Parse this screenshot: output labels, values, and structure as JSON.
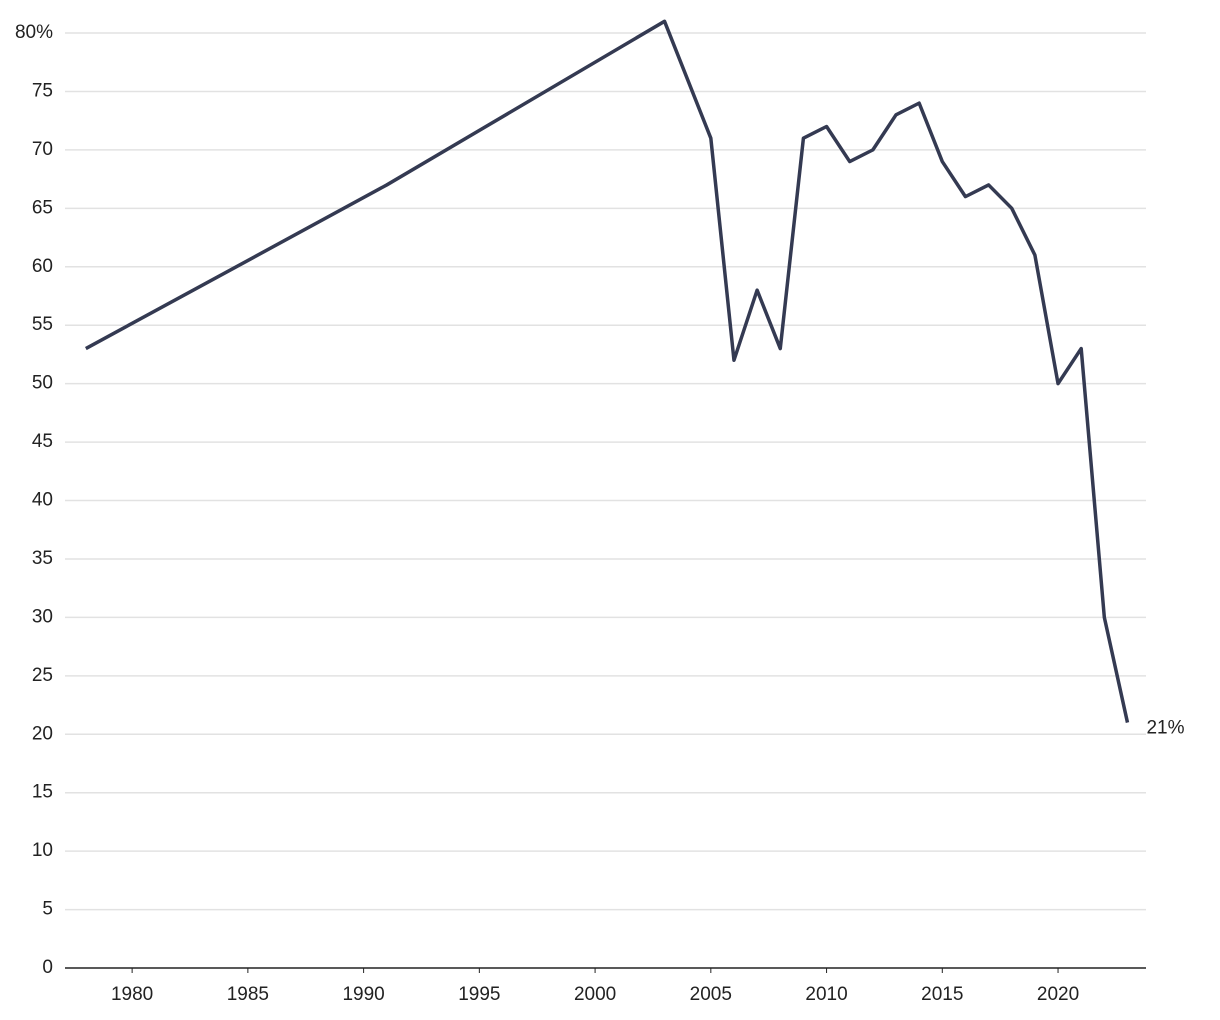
{
  "chart_data": {
    "type": "line",
    "x": [
      1978,
      1991,
      2003,
      2005,
      2006,
      2007,
      2008,
      2009,
      2010,
      2011,
      2012,
      2013,
      2014,
      2015,
      2016,
      2017,
      2018,
      2019,
      2020,
      2021,
      2022,
      2023
    ],
    "series": [
      {
        "color": "#343a52",
        "values": [
          53,
          67,
          81,
          71,
          52,
          58,
          53,
          71,
          72,
          69,
          70,
          73,
          74,
          69,
          66,
          67,
          65,
          61,
          50,
          53,
          30,
          21
        ],
        "value_labels": [
          null,
          null,
          null,
          null,
          null,
          null,
          null,
          null,
          null,
          null,
          null,
          null,
          null,
          null,
          null,
          null,
          null,
          null,
          null,
          null,
          null,
          "21%"
        ]
      }
    ],
    "xlim": [
      1977.1,
      2023.8
    ],
    "xticks": [
      1980,
      1985,
      1990,
      1995,
      2000,
      2005,
      2010,
      2015,
      2020
    ],
    "ylim": [
      0,
      80
    ],
    "yticks": [
      0,
      5,
      10,
      15,
      20,
      25,
      30,
      35,
      40,
      45,
      50,
      55,
      60,
      65,
      70,
      75,
      {
        "value": 80,
        "label": "80%"
      }
    ],
    "grid": true
  }
}
